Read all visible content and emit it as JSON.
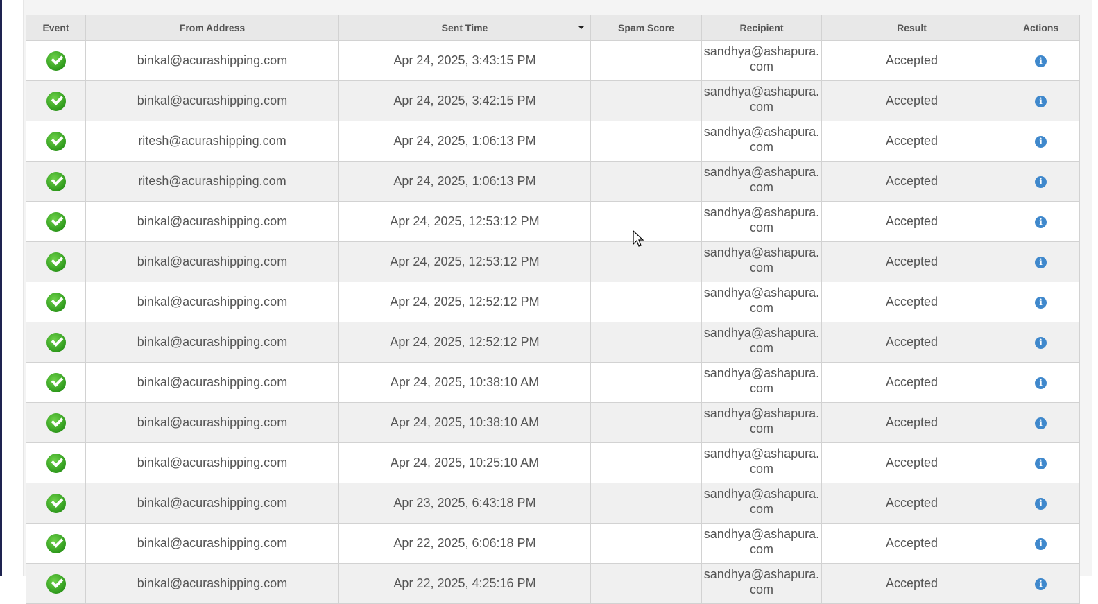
{
  "table": {
    "columns": [
      "Event",
      "From Address",
      "Sent Time",
      "Spam Score",
      "Recipient",
      "Result",
      "Actions"
    ],
    "sorted_column": "Sent Time",
    "sort_direction": "descending",
    "rows": [
      {
        "event": "check-icon",
        "from": "binkal@acurashipping.com",
        "sent": "Apr 24, 2025, 3:43:15 PM",
        "spam": "",
        "recipient": "sandhya@ashapura.com",
        "result": "Accepted"
      },
      {
        "event": "check-icon",
        "from": "binkal@acurashipping.com",
        "sent": "Apr 24, 2025, 3:42:15 PM",
        "spam": "",
        "recipient": "sandhya@ashapura.com",
        "result": "Accepted"
      },
      {
        "event": "check-icon",
        "from": "ritesh@acurashipping.com",
        "sent": "Apr 24, 2025, 1:06:13 PM",
        "spam": "",
        "recipient": "sandhya@ashapura.com",
        "result": "Accepted"
      },
      {
        "event": "check-icon",
        "from": "ritesh@acurashipping.com",
        "sent": "Apr 24, 2025, 1:06:13 PM",
        "spam": "",
        "recipient": "sandhya@ashapura.com",
        "result": "Accepted"
      },
      {
        "event": "check-icon",
        "from": "binkal@acurashipping.com",
        "sent": "Apr 24, 2025, 12:53:12 PM",
        "spam": "",
        "recipient": "sandhya@ashapura.com",
        "result": "Accepted"
      },
      {
        "event": "check-icon",
        "from": "binkal@acurashipping.com",
        "sent": "Apr 24, 2025, 12:53:12 PM",
        "spam": "",
        "recipient": "sandhya@ashapura.com",
        "result": "Accepted"
      },
      {
        "event": "check-icon",
        "from": "binkal@acurashipping.com",
        "sent": "Apr 24, 2025, 12:52:12 PM",
        "spam": "",
        "recipient": "sandhya@ashapura.com",
        "result": "Accepted"
      },
      {
        "event": "check-icon",
        "from": "binkal@acurashipping.com",
        "sent": "Apr 24, 2025, 12:52:12 PM",
        "spam": "",
        "recipient": "sandhya@ashapura.com",
        "result": "Accepted"
      },
      {
        "event": "check-icon",
        "from": "binkal@acurashipping.com",
        "sent": "Apr 24, 2025, 10:38:10 AM",
        "spam": "",
        "recipient": "sandhya@ashapura.com",
        "result": "Accepted"
      },
      {
        "event": "check-icon",
        "from": "binkal@acurashipping.com",
        "sent": "Apr 24, 2025, 10:38:10 AM",
        "spam": "",
        "recipient": "sandhya@ashapura.com",
        "result": "Accepted"
      },
      {
        "event": "check-icon",
        "from": "binkal@acurashipping.com",
        "sent": "Apr 24, 2025, 10:25:10 AM",
        "spam": "",
        "recipient": "sandhya@ashapura.com",
        "result": "Accepted"
      },
      {
        "event": "check-icon",
        "from": "binkal@acurashipping.com",
        "sent": "Apr 23, 2025, 6:43:18 PM",
        "spam": "",
        "recipient": "sandhya@ashapura.com",
        "result": "Accepted"
      },
      {
        "event": "check-icon",
        "from": "binkal@acurashipping.com",
        "sent": "Apr 22, 2025, 6:06:18 PM",
        "spam": "",
        "recipient": "sandhya@ashapura.com",
        "result": "Accepted"
      },
      {
        "event": "check-icon",
        "from": "binkal@acurashipping.com",
        "sent": "Apr 22, 2025, 4:25:16 PM",
        "spam": "",
        "recipient": "sandhya@ashapura.com",
        "result": "Accepted"
      }
    ],
    "action_icon": "info-icon"
  },
  "colors": {
    "success": "#3aa82a",
    "info": "#3f88cc",
    "header_bg": "#e8e8e8"
  }
}
